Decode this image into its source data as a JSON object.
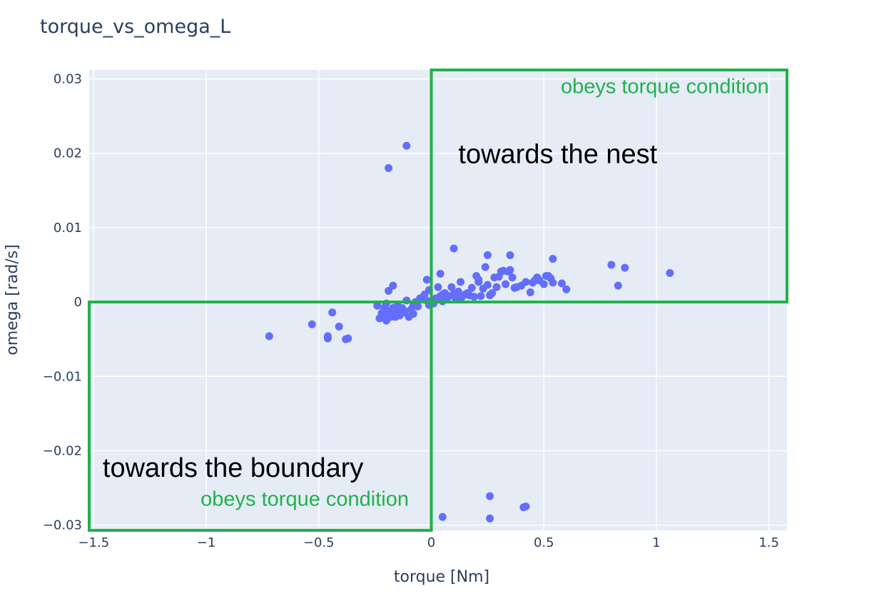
{
  "chart_data": {
    "type": "scatter",
    "title": "torque_vs_omega_L",
    "xlabel": "torque [Nm]",
    "ylabel": "omega [rad/s]",
    "xlim": [
      -1.52,
      1.58
    ],
    "ylim": [
      -0.0307,
      0.0312
    ],
    "xticks": [
      -1.5,
      -1,
      -0.5,
      0,
      0.5,
      1,
      1.5
    ],
    "xtick_labels": [
      "−1.5",
      "−1",
      "−0.5",
      "0",
      "0.5",
      "1",
      "1.5"
    ],
    "yticks": [
      -0.03,
      -0.02,
      -0.01,
      0,
      0.01,
      0.02,
      0.03
    ],
    "ytick_labels": [
      "−0.03",
      "−0.02",
      "−0.01",
      "0",
      "0.01",
      "0.02",
      "0.03"
    ],
    "grid": true,
    "colors": {
      "plot_bg": "#e5ecf6",
      "grid": "#ffffff",
      "marker": "#636efa",
      "box": "#22b14c",
      "text": "#2a3f5f"
    },
    "series": [
      {
        "x": [
          -0.11,
          -0.19,
          -0.72,
          -0.53,
          -0.46,
          -0.46,
          -0.44,
          -0.41,
          -0.38,
          -0.37,
          -0.17,
          -0.19,
          -0.24,
          -0.23,
          -0.22,
          -0.21,
          -0.2,
          -0.19,
          -0.18,
          -0.17,
          -0.16,
          -0.15,
          -0.14,
          -0.13,
          -0.12,
          -0.11,
          -0.1,
          -0.09,
          -0.08,
          -0.07,
          -0.2,
          -0.16,
          -0.12,
          -0.08,
          -0.05,
          -0.03,
          -0.02,
          -0.01,
          -0.21,
          -0.17,
          -0.14,
          -0.06,
          0.01,
          0.02,
          0.03,
          0.04,
          0.05,
          0.06,
          0.07,
          0.08,
          0.09,
          0.1,
          0.11,
          0.12,
          0.13,
          0.14,
          0.15,
          0.16,
          0.17,
          0.18,
          0.19,
          0.2,
          0.21,
          0.22,
          0.23,
          0.24,
          0.25,
          0.26,
          0.27,
          0.28,
          0.29,
          0.3,
          0.31,
          0.32,
          0.33,
          0.34,
          0.35,
          0.36,
          0.37,
          0.38,
          0.4,
          0.42,
          0.44,
          0.45,
          0.46,
          0.47,
          0.48,
          0.5,
          0.51,
          0.52,
          0.53,
          0.54,
          0.58,
          0.6,
          0.1,
          0.04,
          0.25,
          0.35,
          0.54,
          0.8,
          0.86,
          0.83,
          1.06,
          0.21,
          0.13,
          0.05,
          -0.01,
          -0.02,
          0.26,
          0.26,
          0.05,
          0.41,
          0.42
        ],
        "y": [
          0.021,
          0.018,
          -0.0046,
          -0.003,
          -0.0049,
          -0.0046,
          -0.0014,
          -0.0033,
          -0.005,
          -0.0049,
          0.0022,
          0.0015,
          -0.0005,
          -0.0022,
          -0.0015,
          -0.0008,
          -0.0025,
          -0.0012,
          -0.002,
          -0.001,
          -0.0015,
          -0.0005,
          -0.0018,
          -0.0008,
          -0.0012,
          0.0002,
          -0.002,
          -0.001,
          -0.0005,
          0.0,
          -0.0002,
          -0.002,
          -0.0014,
          -0.0016,
          0.0005,
          0.001,
          0.003,
          0.0016,
          -0.0018,
          -0.0008,
          -0.0012,
          -0.0006,
          -0.0002,
          0.0005,
          0.002,
          0.0008,
          0.001,
          0.0012,
          0.0006,
          0.0008,
          0.002,
          0.0011,
          0.0004,
          0.0014,
          0.0027,
          0.0008,
          0.001,
          0.0012,
          0.0009,
          0.0019,
          0.0007,
          0.0035,
          0.003,
          0.0008,
          0.0018,
          0.0047,
          0.0023,
          0.0009,
          0.0012,
          0.0033,
          0.002,
          0.0034,
          0.0041,
          0.0042,
          0.0024,
          0.0041,
          0.0043,
          0.0033,
          0.0019,
          0.002,
          0.0022,
          0.0027,
          0.0013,
          0.0026,
          0.0029,
          0.0033,
          0.0029,
          0.0024,
          0.0035,
          0.0035,
          0.0032,
          0.0026,
          0.0025,
          0.0017,
          0.0072,
          0.0038,
          0.0063,
          0.0063,
          0.0058,
          0.005,
          0.0046,
          0.0022,
          0.0039,
          0.0027,
          0.0004,
          0.0001,
          -0.0004,
          0.0002,
          -0.0261,
          -0.0291,
          -0.0289,
          -0.0276,
          -0.0275
        ]
      }
    ],
    "shapes": [
      {
        "name": "quadrant-box-upper-right",
        "x0": 0.0,
        "x1": 1.58,
        "y0": 0.0,
        "y1": 0.0312
      },
      {
        "name": "quadrant-box-lower-left",
        "x0": -1.52,
        "x1": 0.0,
        "y0": -0.0307,
        "y1": 0.0
      }
    ],
    "annotations": [
      {
        "name": "annotation-obeys-upper",
        "text": "obeys torque condition",
        "x": 1.5,
        "y": 0.0281,
        "color": "#22b14c",
        "anchor": "end",
        "style": "green"
      },
      {
        "name": "annotation-towards-nest",
        "text": "towards the nest",
        "x": 0.12,
        "y": 0.0187,
        "color": "#000000",
        "anchor": "start",
        "style": "big"
      },
      {
        "name": "annotation-towards-boundary",
        "text": "towards the boundary",
        "x": -1.46,
        "y": -0.0235,
        "color": "#000000",
        "anchor": "start",
        "style": "big"
      },
      {
        "name": "annotation-obeys-lower",
        "text": "obeys torque condition",
        "x": -0.1,
        "y": -0.0274,
        "color": "#22b14c",
        "anchor": "end",
        "style": "green"
      }
    ]
  }
}
